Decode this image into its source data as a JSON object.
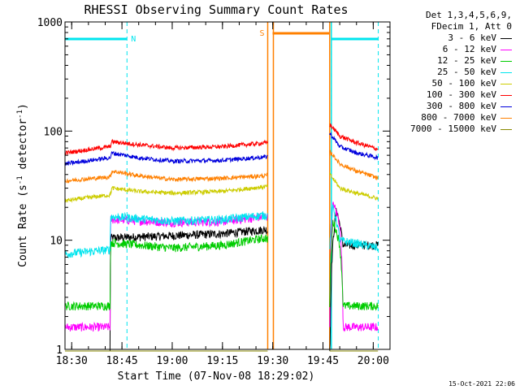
{
  "chart_data": {
    "type": "line",
    "title": "RHESSI Observing Summary Count Rates",
    "xlabel": "Start Time (07-Nov-08 18:29:02)",
    "ylabel": "Count Rate (s",
    "ylabel_sup": "-1",
    "ylabel_mid": " detector",
    "ylabel_sup2": "-1",
    "ylabel_end": ")",
    "y_scale": "log",
    "ylim": [
      1,
      1000
    ],
    "xlim_minutes": [
      -2,
      95
    ],
    "x_ticks": [
      {
        "t": 0,
        "label": "18:30"
      },
      {
        "t": 15,
        "label": "18:45"
      },
      {
        "t": 30,
        "label": "19:00"
      },
      {
        "t": 45,
        "label": "19:15"
      },
      {
        "t": 60,
        "label": "19:30"
      },
      {
        "t": 75,
        "label": "19:45"
      },
      {
        "t": 90,
        "label": "20:00"
      }
    ],
    "y_ticks": [
      {
        "v": 1,
        "label": "1"
      },
      {
        "v": 10,
        "label": "10"
      },
      {
        "v": 100,
        "label": "100"
      },
      {
        "v": 1000,
        "label": "1000"
      }
    ],
    "legend": {
      "header": [
        "Det 1,3,4,5,6,9,",
        "FDecim 1, Att 0"
      ],
      "placement": "right"
    },
    "markers": [
      {
        "t": 16.5,
        "label": "N",
        "color": "#00e5ee"
      },
      {
        "t": 77.5,
        "label": "",
        "color": "#00e5ee"
      },
      {
        "t": 91.5,
        "label": "",
        "color": "#00e5ee"
      }
    ],
    "saa": {
      "t_start": 58.5,
      "t_end": 77.0,
      "label": "S",
      "color": "#ff8000"
    },
    "attenuator_bar": [
      {
        "t_start": -2,
        "t_end": 16.5,
        "color": "#00e5ee"
      },
      {
        "t_start": 77.5,
        "t_end": 91.5,
        "color": "#00e5ee"
      }
    ],
    "segments": [
      {
        "t_start": -2,
        "t_end": 58.5
      },
      {
        "t_start": 77.0,
        "t_end": 91.5
      }
    ],
    "series": [
      {
        "name": "3 - 6 keV",
        "color": "#000000",
        "points": [
          [
            -2,
            0
          ],
          [
            11.5,
            0
          ],
          [
            11.6,
            10.5
          ],
          [
            30,
            11.0
          ],
          [
            45,
            11.5
          ],
          [
            58,
            12.5
          ],
          [
            77,
            0
          ],
          [
            79,
            19
          ],
          [
            81,
            9
          ],
          [
            91.5,
            9
          ]
        ]
      },
      {
        "name": "6 - 12 keV",
        "color": "#ff00ff",
        "points": [
          [
            -2,
            1.6
          ],
          [
            11.5,
            1.6
          ],
          [
            11.6,
            15.5
          ],
          [
            30,
            14.5
          ],
          [
            45,
            14.8
          ],
          [
            58,
            16.5
          ],
          [
            77,
            1.6
          ],
          [
            78,
            22
          ],
          [
            80,
            14
          ],
          [
            81,
            1.6
          ],
          [
            91.5,
            1.6
          ]
        ]
      },
      {
        "name": "12 - 25 keV",
        "color": "#00cc00",
        "points": [
          [
            -2,
            2.5
          ],
          [
            11.5,
            2.5
          ],
          [
            11.6,
            9.5
          ],
          [
            30,
            8.5
          ],
          [
            45,
            9.0
          ],
          [
            58,
            10.5
          ],
          [
            77,
            2.5
          ],
          [
            78,
            15
          ],
          [
            80,
            9
          ],
          [
            81,
            2.5
          ],
          [
            91.5,
            2.5
          ]
        ]
      },
      {
        "name": "25 - 50 keV",
        "color": "#00e5ee",
        "points": [
          [
            -2,
            7.5
          ],
          [
            11.5,
            8.2
          ],
          [
            11.6,
            16.5
          ],
          [
            30,
            15.0
          ],
          [
            45,
            15.5
          ],
          [
            58,
            17.0
          ],
          [
            77,
            9
          ],
          [
            78,
            20
          ],
          [
            80,
            10
          ],
          [
            91.5,
            8.5
          ]
        ]
      },
      {
        "name": "50 - 100 keV",
        "color": "#cccc00",
        "points": [
          [
            -2,
            23
          ],
          [
            11.5,
            26
          ],
          [
            12,
            30
          ],
          [
            20,
            28
          ],
          [
            30,
            27
          ],
          [
            45,
            28
          ],
          [
            58,
            31
          ],
          [
            77,
            40
          ],
          [
            80,
            30
          ],
          [
            85,
            27
          ],
          [
            91.5,
            24
          ]
        ]
      },
      {
        "name": "100 - 300 keV",
        "color": "#ff0000",
        "points": [
          [
            -2,
            63
          ],
          [
            11.5,
            72
          ],
          [
            12,
            80
          ],
          [
            20,
            75
          ],
          [
            30,
            70
          ],
          [
            45,
            72
          ],
          [
            58,
            78
          ],
          [
            77,
            115
          ],
          [
            80,
            90
          ],
          [
            85,
            78
          ],
          [
            91.5,
            68
          ]
        ]
      },
      {
        "name": "300 - 800 keV",
        "color": "#0000dd",
        "points": [
          [
            -2,
            50
          ],
          [
            11.5,
            57
          ],
          [
            12,
            63
          ],
          [
            20,
            57
          ],
          [
            30,
            53
          ],
          [
            45,
            54
          ],
          [
            58,
            58
          ],
          [
            77,
            95
          ],
          [
            80,
            72
          ],
          [
            85,
            63
          ],
          [
            91.5,
            57
          ]
        ]
      },
      {
        "name": "800 - 7000 keV",
        "color": "#ff8000",
        "points": [
          [
            -2,
            35
          ],
          [
            11.5,
            38
          ],
          [
            12,
            43
          ],
          [
            20,
            39
          ],
          [
            30,
            36
          ],
          [
            45,
            37
          ],
          [
            58,
            39
          ],
          [
            77,
            65
          ],
          [
            80,
            50
          ],
          [
            85,
            43
          ],
          [
            91.5,
            37
          ]
        ]
      },
      {
        "name": "7000 - 15000 keV",
        "color": "#888800",
        "points": [
          [
            -2,
            0
          ],
          [
            91.5,
            0
          ]
        ]
      }
    ]
  },
  "footer": {
    "timestamp": "15-Oct-2021 22:06"
  }
}
